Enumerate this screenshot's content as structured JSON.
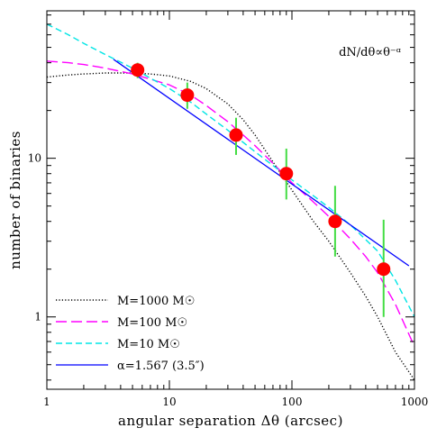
{
  "chart_data": {
    "type": "line",
    "xlabel": "angular separation Δθ (arcsec)",
    "ylabel": "number of binaries",
    "x_scale": "log",
    "y_scale": "log",
    "xlim": [
      1,
      1000
    ],
    "ylim": [
      0.35,
      85
    ],
    "x_tick_labels": [
      {
        "value": 1,
        "label": "1"
      },
      {
        "value": 10,
        "label": "10"
      },
      {
        "value": 100,
        "label": "100"
      },
      {
        "value": 1000,
        "label": "1000"
      }
    ],
    "y_tick_labels": [
      {
        "value": 1,
        "label": "1"
      },
      {
        "value": 10,
        "label": "10"
      }
    ],
    "annotation": "dN/dθ∝θ⁻ᵅ",
    "legend_position": "bottom-left",
    "grid": false,
    "series": [
      {
        "name": "M=1000 M☉",
        "style": "dotted",
        "color": "#000000",
        "x": [
          1,
          1.5,
          2,
          3,
          5,
          7,
          10,
          15,
          20,
          30,
          40,
          50,
          70,
          100,
          150,
          200,
          300,
          400,
          500,
          700,
          1000
        ],
        "y": [
          32.5,
          33.5,
          34,
          34.5,
          34.5,
          34,
          33,
          30.5,
          27.5,
          22,
          17.5,
          14,
          9.5,
          6.3,
          4.0,
          3.0,
          1.9,
          1.35,
          1.0,
          0.6,
          0.4
        ]
      },
      {
        "name": "M=100 M☉",
        "style": "dashed",
        "color": "#ff00ff",
        "x": [
          1,
          1.5,
          2,
          3,
          5,
          7,
          10,
          15,
          20,
          30,
          40,
          50,
          70,
          100,
          150,
          200,
          300,
          400,
          500,
          700,
          1000
        ],
        "y": [
          41,
          40,
          39,
          37,
          34,
          31.5,
          29,
          25,
          21.5,
          17,
          14,
          12,
          9.3,
          7.0,
          5.3,
          4.3,
          3.1,
          2.4,
          1.9,
          1.2,
          0.65
        ]
      },
      {
        "name": "M=10 M☉",
        "style": "dashed",
        "color": "#00e5e5",
        "x": [
          1,
          1.5,
          2,
          3,
          5,
          7,
          10,
          15,
          20,
          30,
          50,
          70,
          100,
          150,
          200,
          300,
          500,
          700,
          1000
        ],
        "y": [
          70,
          60,
          53,
          45,
          37,
          32,
          27.5,
          22.5,
          19,
          15,
          11,
          9,
          7.3,
          5.8,
          4.9,
          3.8,
          2.6,
          1.7,
          1.0
        ]
      },
      {
        "name": "α=1.567 (3.5″)",
        "style": "solid",
        "color": "#0000ff",
        "x": [
          3.5,
          900
        ],
        "y": [
          42,
          2.1
        ]
      },
      {
        "name": "",
        "style": "markers",
        "color": "#ff0000",
        "error_bar_color": "#44dd44",
        "x": [
          5.5,
          14,
          35,
          90,
          225,
          560
        ],
        "y": [
          36,
          25,
          14,
          8,
          4,
          2
        ],
        "y_err_low": [
          32,
          20.5,
          10.5,
          5.5,
          2.4,
          1.0
        ],
        "y_err_high": [
          40,
          30,
          18,
          11.5,
          6.7,
          4.1
        ]
      }
    ]
  }
}
